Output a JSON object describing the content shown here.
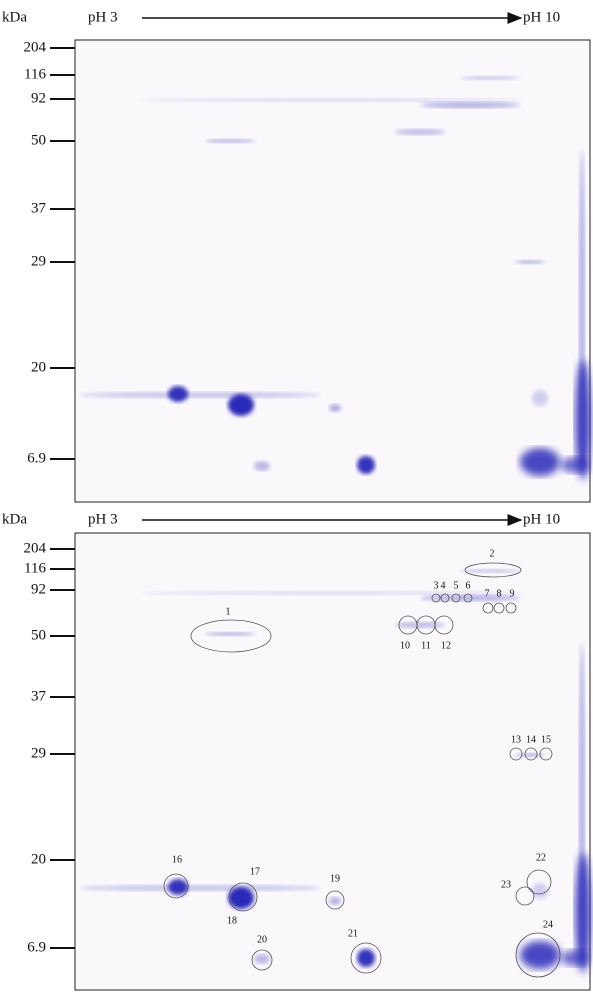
{
  "top_panel": {
    "unit": "kDa",
    "ph_start": "pH 3",
    "ph_end": "pH 10",
    "markers": [
      "204",
      "116",
      "92",
      "50",
      "37",
      "29",
      "20",
      "6.9"
    ]
  },
  "bottom_panel": {
    "unit": "kDa",
    "ph_start": "pH 3",
    "ph_end": "pH 10",
    "markers": [
      "204",
      "116",
      "92",
      "50",
      "37",
      "29",
      "20",
      "6.9"
    ],
    "spots": [
      "1",
      "2",
      "3",
      "4",
      "5",
      "6",
      "7",
      "8",
      "9",
      "10",
      "11",
      "12",
      "13",
      "14",
      "15",
      "16",
      "17",
      "18",
      "19",
      "20",
      "21",
      "22",
      "23",
      "24"
    ]
  }
}
